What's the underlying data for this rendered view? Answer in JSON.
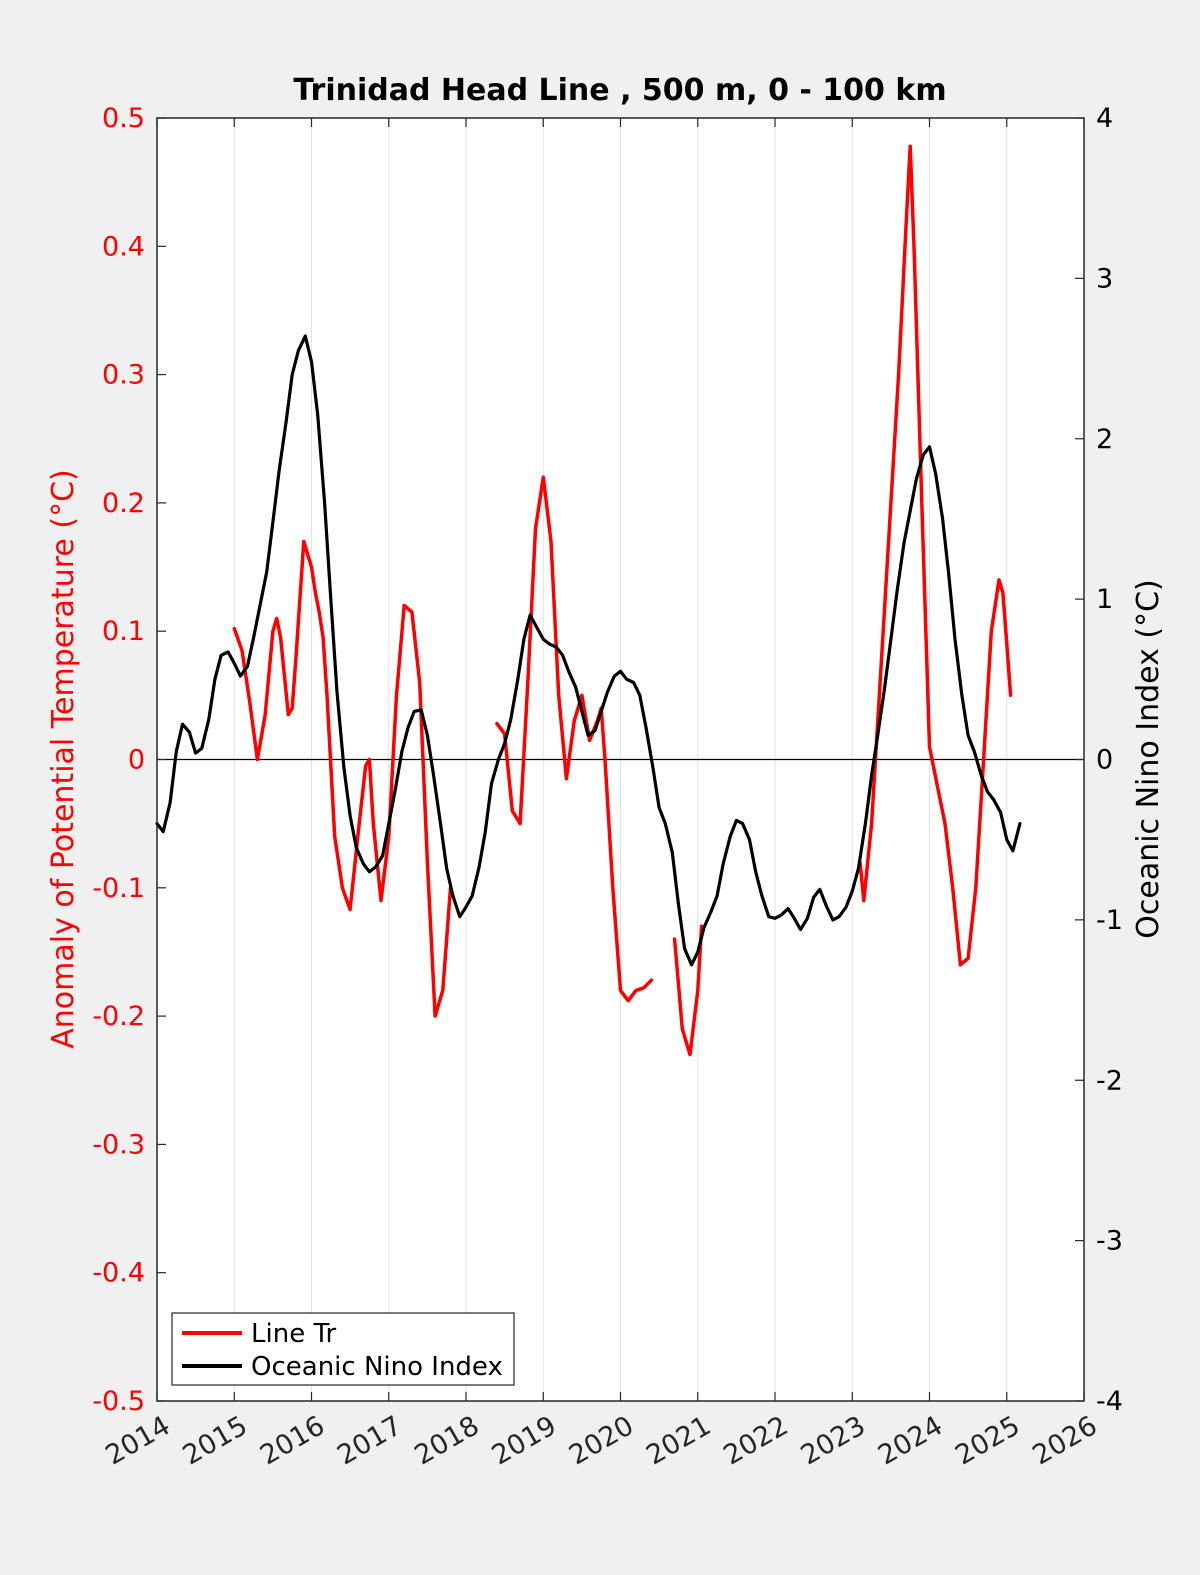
{
  "chart_data": {
    "type": "line",
    "title": "Trinidad Head Line , 500 m, 0 - 100 km",
    "ylabel_left": "Anomaly of Potential Temperature (°C)",
    "ylabel_right": "Oceanic Nino Index (°C)",
    "xlim": [
      2014,
      2026
    ],
    "ylim_left": [
      -0.5,
      0.5
    ],
    "ylim_right": [
      -4,
      4
    ],
    "x_ticks": [
      2014,
      2015,
      2016,
      2017,
      2018,
      2019,
      2020,
      2021,
      2022,
      2023,
      2024,
      2025,
      2026
    ],
    "x_tick_labels": [
      "2014",
      "2015",
      "2016",
      "2017",
      "2018",
      "2019",
      "2020",
      "2021",
      "2022",
      "2023",
      "2024",
      "2025",
      "2026"
    ],
    "y_left_ticks": [
      -0.5,
      -0.4,
      -0.3,
      -0.2,
      -0.1,
      0,
      0.1,
      0.2,
      0.3,
      0.4,
      0.5
    ],
    "y_left_tick_labels": [
      "-0.5",
      "-0.4",
      "-0.3",
      "-0.2",
      "-0.1",
      "0",
      "0.1",
      "0.2",
      "0.3",
      "0.4",
      "0.5"
    ],
    "y_right_ticks": [
      -4,
      -3,
      -2,
      -1,
      0,
      1,
      2,
      3,
      4
    ],
    "y_right_tick_labels": [
      "-4",
      "-3",
      "-2",
      "-1",
      "0",
      "1",
      "2",
      "3",
      "4"
    ],
    "grid": "vertical",
    "zero_line": true,
    "legend_position": "bottom-left",
    "series": [
      {
        "name": "Line Tr",
        "axis": "left",
        "color": "#ff0000",
        "segments": [
          [
            [
              2015.0,
              0.102
            ],
            [
              2015.1,
              0.085
            ],
            [
              2015.2,
              0.045
            ],
            [
              2015.3,
              0.0
            ],
            [
              2015.4,
              0.035
            ],
            [
              2015.5,
              0.1
            ],
            [
              2015.55,
              0.11
            ],
            [
              2015.6,
              0.095
            ],
            [
              2015.7,
              0.035
            ],
            [
              2015.75,
              0.04
            ],
            [
              2015.8,
              0.08
            ],
            [
              2015.9,
              0.17
            ],
            [
              2016.0,
              0.15
            ],
            [
              2016.05,
              0.13
            ],
            [
              2016.1,
              0.115
            ],
            [
              2016.15,
              0.095
            ],
            [
              2016.2,
              0.05
            ],
            [
              2016.3,
              -0.06
            ],
            [
              2016.4,
              -0.1
            ],
            [
              2016.5,
              -0.117
            ],
            [
              2016.6,
              -0.06
            ],
            [
              2016.7,
              -0.005
            ],
            [
              2016.75,
              0.0
            ],
            [
              2016.8,
              -0.05
            ],
            [
              2016.9,
              -0.11
            ],
            [
              2017.0,
              -0.06
            ],
            [
              2017.1,
              0.05
            ],
            [
              2017.2,
              0.12
            ],
            [
              2017.3,
              0.115
            ],
            [
              2017.4,
              0.06
            ],
            [
              2017.5,
              -0.08
            ],
            [
              2017.6,
              -0.2
            ],
            [
              2017.7,
              -0.18
            ],
            [
              2017.8,
              -0.1
            ]
          ],
          [
            [
              2018.4,
              0.028
            ],
            [
              2018.5,
              0.02
            ],
            [
              2018.6,
              -0.04
            ],
            [
              2018.7,
              -0.05
            ],
            [
              2018.8,
              0.06
            ],
            [
              2018.9,
              0.18
            ],
            [
              2019.0,
              0.22
            ],
            [
              2019.1,
              0.17
            ],
            [
              2019.2,
              0.05
            ],
            [
              2019.3,
              -0.015
            ],
            [
              2019.4,
              0.03
            ],
            [
              2019.5,
              0.05
            ],
            [
              2019.6,
              0.015
            ],
            [
              2019.7,
              0.03
            ],
            [
              2019.75,
              0.04
            ],
            [
              2019.8,
              0.0
            ],
            [
              2019.9,
              -0.1
            ],
            [
              2020.0,
              -0.18
            ],
            [
              2020.1,
              -0.188
            ],
            [
              2020.2,
              -0.18
            ],
            [
              2020.3,
              -0.178
            ],
            [
              2020.4,
              -0.172
            ]
          ],
          [
            [
              2020.7,
              -0.14
            ],
            [
              2020.8,
              -0.21
            ],
            [
              2020.9,
              -0.23
            ],
            [
              2021.0,
              -0.18
            ],
            [
              2021.05,
              -0.13
            ]
          ],
          [
            [
              2023.1,
              -0.08
            ],
            [
              2023.15,
              -0.11
            ],
            [
              2023.25,
              -0.05
            ],
            [
              2023.4,
              0.1
            ],
            [
              2023.5,
              0.2
            ],
            [
              2023.6,
              0.3
            ],
            [
              2023.7,
              0.42
            ],
            [
              2023.75,
              0.478
            ],
            [
              2023.8,
              0.4
            ],
            [
              2023.9,
              0.2
            ],
            [
              2024.0,
              0.01
            ],
            [
              2024.1,
              -0.02
            ],
            [
              2024.2,
              -0.05
            ],
            [
              2024.3,
              -0.1
            ],
            [
              2024.4,
              -0.16
            ],
            [
              2024.5,
              -0.155
            ],
            [
              2024.6,
              -0.1
            ],
            [
              2024.7,
              0.0
            ],
            [
              2024.8,
              0.1
            ],
            [
              2024.9,
              0.14
            ],
            [
              2024.95,
              0.13
            ],
            [
              2025.0,
              0.09
            ],
            [
              2025.05,
              0.05
            ]
          ]
        ]
      },
      {
        "name": "Oceanic Nino Index",
        "axis": "right",
        "color": "#000000",
        "segments": [
          [
            [
              2014.0,
              -0.4
            ],
            [
              2014.08,
              -0.45
            ],
            [
              2014.17,
              -0.27
            ],
            [
              2014.25,
              0.05
            ],
            [
              2014.33,
              0.22
            ],
            [
              2014.42,
              0.17
            ],
            [
              2014.5,
              0.04
            ],
            [
              2014.58,
              0.07
            ],
            [
              2014.67,
              0.25
            ],
            [
              2014.75,
              0.5
            ],
            [
              2014.83,
              0.65
            ],
            [
              2014.92,
              0.67
            ],
            [
              2015.0,
              0.6
            ],
            [
              2015.08,
              0.52
            ],
            [
              2015.17,
              0.58
            ],
            [
              2015.25,
              0.76
            ],
            [
              2015.33,
              0.95
            ],
            [
              2015.42,
              1.17
            ],
            [
              2015.5,
              1.48
            ],
            [
              2015.58,
              1.8
            ],
            [
              2015.67,
              2.1
            ],
            [
              2015.75,
              2.4
            ],
            [
              2015.83,
              2.55
            ],
            [
              2015.92,
              2.64
            ],
            [
              2016.0,
              2.48
            ],
            [
              2016.08,
              2.15
            ],
            [
              2016.17,
              1.6
            ],
            [
              2016.25,
              1.0
            ],
            [
              2016.33,
              0.42
            ],
            [
              2016.42,
              -0.05
            ],
            [
              2016.5,
              -0.35
            ],
            [
              2016.58,
              -0.55
            ],
            [
              2016.67,
              -0.65
            ],
            [
              2016.75,
              -0.7
            ],
            [
              2016.83,
              -0.67
            ],
            [
              2016.92,
              -0.6
            ],
            [
              2017.0,
              -0.4
            ],
            [
              2017.08,
              -0.2
            ],
            [
              2017.17,
              0.05
            ],
            [
              2017.25,
              0.2
            ],
            [
              2017.33,
              0.3
            ],
            [
              2017.42,
              0.31
            ],
            [
              2017.5,
              0.15
            ],
            [
              2017.58,
              -0.1
            ],
            [
              2017.67,
              -0.4
            ],
            [
              2017.75,
              -0.68
            ],
            [
              2017.83,
              -0.85
            ],
            [
              2017.92,
              -0.98
            ],
            [
              2018.0,
              -0.92
            ],
            [
              2018.08,
              -0.85
            ],
            [
              2018.17,
              -0.67
            ],
            [
              2018.25,
              -0.45
            ],
            [
              2018.33,
              -0.15
            ],
            [
              2018.42,
              0.0
            ],
            [
              2018.5,
              0.1
            ],
            [
              2018.58,
              0.25
            ],
            [
              2018.67,
              0.5
            ],
            [
              2018.75,
              0.75
            ],
            [
              2018.83,
              0.9
            ],
            [
              2018.92,
              0.82
            ],
            [
              2019.0,
              0.75
            ],
            [
              2019.08,
              0.72
            ],
            [
              2019.17,
              0.7
            ],
            [
              2019.25,
              0.65
            ],
            [
              2019.33,
              0.55
            ],
            [
              2019.42,
              0.45
            ],
            [
              2019.5,
              0.3
            ],
            [
              2019.58,
              0.15
            ],
            [
              2019.67,
              0.18
            ],
            [
              2019.75,
              0.3
            ],
            [
              2019.83,
              0.42
            ],
            [
              2019.92,
              0.52
            ],
            [
              2020.0,
              0.55
            ],
            [
              2020.08,
              0.5
            ],
            [
              2020.17,
              0.48
            ],
            [
              2020.25,
              0.4
            ],
            [
              2020.33,
              0.2
            ],
            [
              2020.42,
              -0.05
            ],
            [
              2020.5,
              -0.3
            ],
            [
              2020.58,
              -0.4
            ],
            [
              2020.67,
              -0.58
            ],
            [
              2020.75,
              -0.9
            ],
            [
              2020.83,
              -1.18
            ],
            [
              2020.92,
              -1.28
            ],
            [
              2021.0,
              -1.2
            ],
            [
              2021.08,
              -1.05
            ],
            [
              2021.17,
              -0.95
            ],
            [
              2021.25,
              -0.85
            ],
            [
              2021.33,
              -0.65
            ],
            [
              2021.42,
              -0.48
            ],
            [
              2021.5,
              -0.38
            ],
            [
              2021.58,
              -0.4
            ],
            [
              2021.67,
              -0.5
            ],
            [
              2021.75,
              -0.7
            ],
            [
              2021.83,
              -0.85
            ],
            [
              2021.92,
              -0.98
            ],
            [
              2022.0,
              -0.99
            ],
            [
              2022.08,
              -0.97
            ],
            [
              2022.17,
              -0.93
            ],
            [
              2022.25,
              -0.99
            ],
            [
              2022.33,
              -1.06
            ],
            [
              2022.42,
              -0.99
            ],
            [
              2022.5,
              -0.86
            ],
            [
              2022.58,
              -0.81
            ],
            [
              2022.67,
              -0.92
            ],
            [
              2022.75,
              -1.0
            ],
            [
              2022.83,
              -0.98
            ],
            [
              2022.92,
              -0.92
            ],
            [
              2023.0,
              -0.82
            ],
            [
              2023.08,
              -0.68
            ],
            [
              2023.17,
              -0.4
            ],
            [
              2023.25,
              -0.1
            ],
            [
              2023.33,
              0.15
            ],
            [
              2023.42,
              0.45
            ],
            [
              2023.5,
              0.75
            ],
            [
              2023.58,
              1.05
            ],
            [
              2023.67,
              1.35
            ],
            [
              2023.75,
              1.55
            ],
            [
              2023.83,
              1.75
            ],
            [
              2023.92,
              1.9
            ],
            [
              2024.0,
              1.95
            ],
            [
              2024.08,
              1.78
            ],
            [
              2024.17,
              1.5
            ],
            [
              2024.25,
              1.15
            ],
            [
              2024.33,
              0.75
            ],
            [
              2024.42,
              0.4
            ],
            [
              2024.5,
              0.15
            ],
            [
              2024.58,
              0.05
            ],
            [
              2024.67,
              -0.1
            ],
            [
              2024.75,
              -0.2
            ],
            [
              2024.83,
              -0.25
            ],
            [
              2024.92,
              -0.33
            ],
            [
              2025.0,
              -0.5
            ],
            [
              2025.08,
              -0.57
            ],
            [
              2025.17,
              -0.4
            ]
          ]
        ]
      }
    ]
  }
}
